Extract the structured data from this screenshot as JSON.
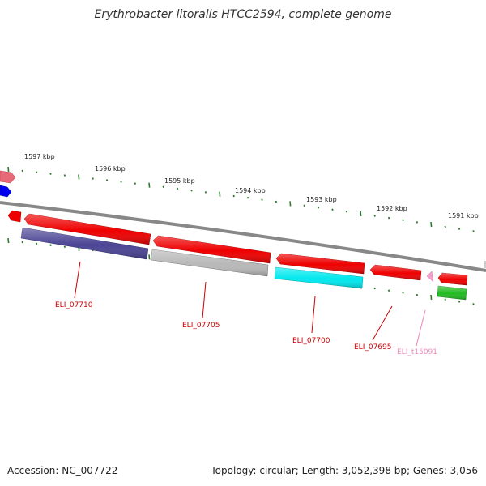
{
  "title": "Erythrobacter litoralis HTCC2594, complete genome",
  "accession": "Accession: NC_007722",
  "summary": "Topology: circular; Length: 3,052,398 bp; Genes: 3,056",
  "colors": {
    "backbone": "#888888",
    "tick": "#2a7a2a",
    "tick_label": "#222222",
    "gene_label_red": "#cc0000",
    "gene_label_pink": "#ee88bb"
  },
  "scale": {
    "labels": [
      "1597 kbp",
      "1596 kbp",
      "1595 kbp",
      "1594 kbp",
      "1593 kbp",
      "1592 kbp",
      "1591 kbp"
    ]
  },
  "features": [
    {
      "id": "feat-offedge-pink",
      "color": "#e86a78",
      "strand": "forward",
      "track": "outer"
    },
    {
      "id": "feat-offedge-blue",
      "color": "#0000ee",
      "strand": "reverse",
      "track": "outer"
    },
    {
      "id": "feat-small-red",
      "color": "#ee0000",
      "strand": "reverse"
    },
    {
      "id": "feat-red-1",
      "color": "#ee0000",
      "strand": "reverse"
    },
    {
      "id": "feat-navy",
      "color": "#4a4494",
      "strand": "forward"
    },
    {
      "id": "feat-red-2",
      "color": "#ee0000",
      "strand": "reverse"
    },
    {
      "id": "feat-gray",
      "color": "#b8b8b8",
      "strand": "forward"
    },
    {
      "id": "feat-red-3",
      "color": "#ee0000",
      "strand": "reverse"
    },
    {
      "id": "feat-cyan",
      "color": "#00e8ee",
      "strand": "forward"
    },
    {
      "id": "feat-red-4",
      "color": "#ee0000",
      "strand": "reverse"
    },
    {
      "id": "feat-pink-trna",
      "color": "#f4a0c8",
      "strand": "reverse"
    },
    {
      "id": "feat-red-5",
      "color": "#ee0000",
      "strand": "reverse"
    },
    {
      "id": "feat-green",
      "color": "#22bb22",
      "strand": "forward"
    }
  ],
  "gene_labels": [
    {
      "text": "ELI_07710",
      "color": "#cc0000"
    },
    {
      "text": "ELI_07705",
      "color": "#cc0000"
    },
    {
      "text": "ELI_07700",
      "color": "#cc0000"
    },
    {
      "text": "ELI_07695",
      "color": "#cc0000"
    },
    {
      "text": "ELI_t15091",
      "color": "#ee88bb"
    }
  ]
}
